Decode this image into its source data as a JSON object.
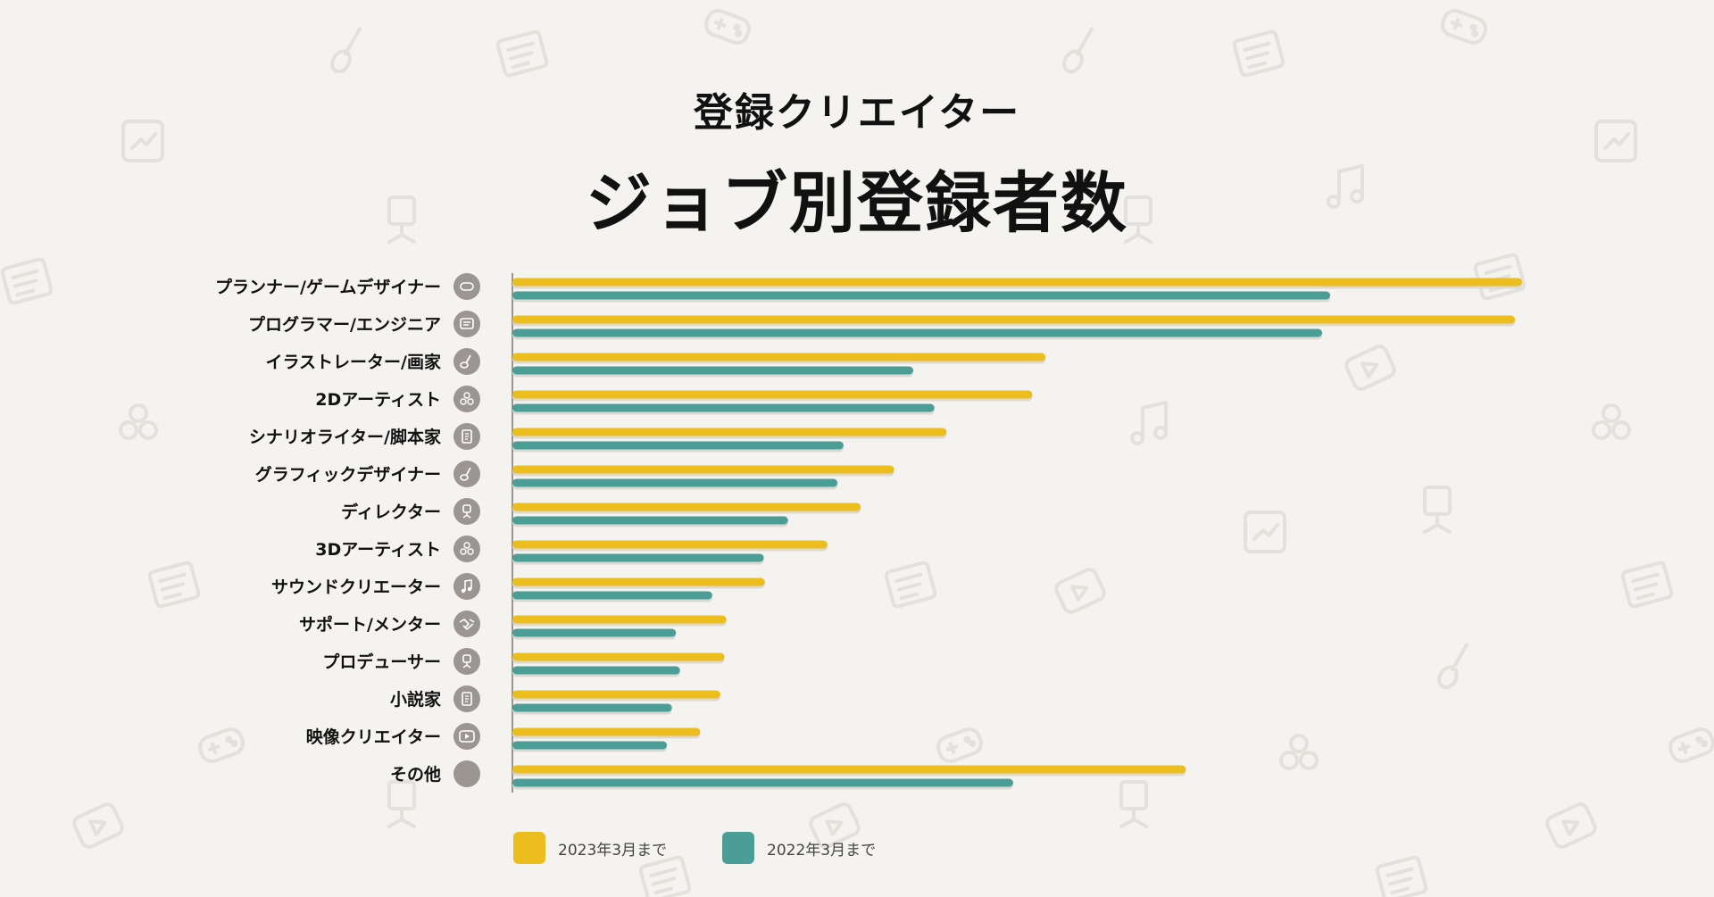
{
  "header": {
    "subtitle": "登録クリエイター",
    "title": "ジョブ別登録者数"
  },
  "colors": {
    "series_2023": "#ebbd1d",
    "series_2022": "#4b9e96",
    "icon_badge": "#9b9692",
    "background": "#f5f3f0"
  },
  "legend": [
    {
      "label": "2023年3月まで",
      "color": "#ebbd1d"
    },
    {
      "label": "2022年3月まで",
      "color": "#4b9e96"
    }
  ],
  "chart_data": {
    "type": "bar",
    "orientation": "horizontal",
    "categories": [
      "プランナー/ゲームデザイナー",
      "プログラマー/エンジニア",
      "イラストレーター/画家",
      "2Dアーティスト",
      "シナリオライター/脚本家",
      "グラフィックデザイナー",
      "ディレクター",
      "3Dアーティスト",
      "サウンドクリエーター",
      "サポート/メンター",
      "プロデューサー",
      "小説家",
      "映像クリエイター",
      "その他"
    ],
    "category_icons": [
      "gamepad-icon",
      "monitor-code-icon",
      "brush-icon",
      "cubes-icon",
      "document-icon",
      "brush-icon",
      "chair-icon",
      "cubes-icon",
      "music-note-icon",
      "handshake-icon",
      "chair-icon",
      "document-icon",
      "video-play-icon",
      "blank-icon"
    ],
    "series": [
      {
        "name": "2023年3月まで",
        "values": [
          1000,
          993,
          528,
          515,
          430,
          378,
          345,
          312,
          250,
          212,
          210,
          206,
          186,
          667
        ]
      },
      {
        "name": "2022年3月まで",
        "values": [
          810,
          802,
          397,
          418,
          328,
          322,
          273,
          249,
          198,
          162,
          166,
          158,
          153,
          496
        ]
      }
    ],
    "xlim": [
      0,
      1000
    ],
    "grid": false,
    "legend_position": "bottom-left"
  }
}
